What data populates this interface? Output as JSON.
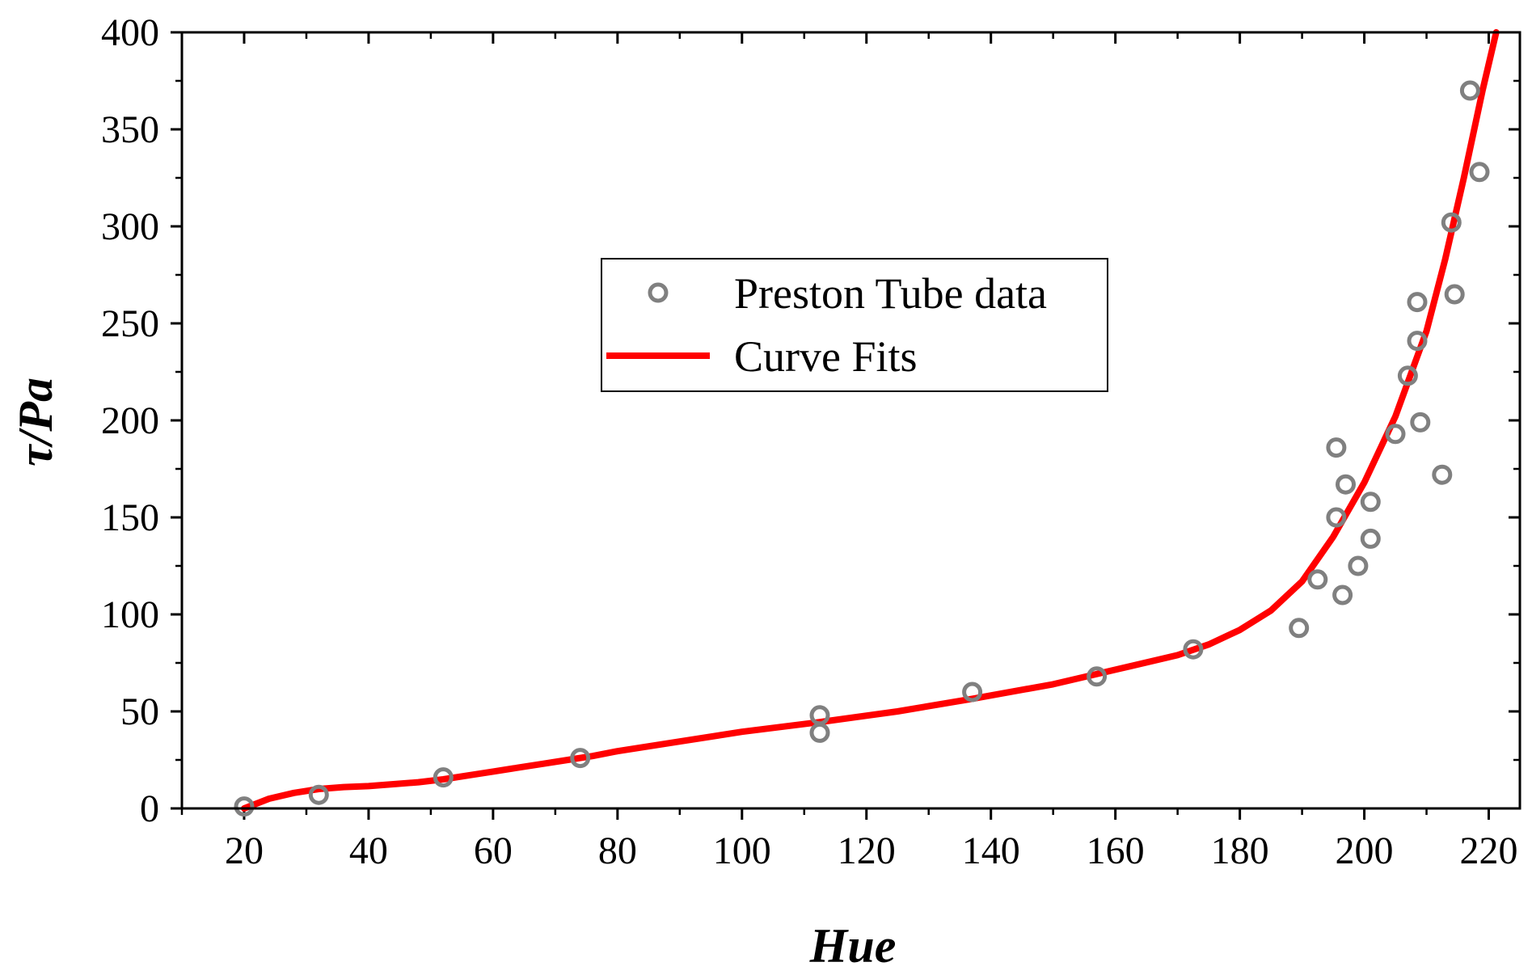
{
  "chart_data": {
    "type": "scatter",
    "xlabel": "Hue",
    "ylabel": "τ/Pa",
    "xlim": [
      10,
      225
    ],
    "ylim": [
      0,
      400
    ],
    "x_ticks": [
      20,
      40,
      60,
      80,
      100,
      120,
      140,
      160,
      180,
      200,
      220
    ],
    "y_ticks": [
      0,
      50,
      100,
      150,
      200,
      250,
      300,
      350,
      400
    ],
    "legend": {
      "placement": "center-left",
      "entries": [
        "Preston Tube data",
        "Curve Fits"
      ]
    },
    "series": [
      {
        "name": "Preston Tube data",
        "kind": "scatter",
        "color": "#808080",
        "points": [
          [
            20,
            1
          ],
          [
            32,
            7
          ],
          [
            52,
            16
          ],
          [
            74,
            26
          ],
          [
            112.5,
            48
          ],
          [
            112.5,
            39
          ],
          [
            137,
            60
          ],
          [
            157,
            68
          ],
          [
            172.5,
            82
          ],
          [
            189.5,
            93
          ],
          [
            192.5,
            118
          ],
          [
            195.5,
            186
          ],
          [
            195.5,
            150
          ],
          [
            196.5,
            110
          ],
          [
            197,
            167
          ],
          [
            199,
            125
          ],
          [
            201,
            158
          ],
          [
            201,
            139
          ],
          [
            205,
            193
          ],
          [
            207,
            223
          ],
          [
            208.5,
            241
          ],
          [
            208.5,
            261
          ],
          [
            209,
            199
          ],
          [
            212.5,
            172
          ],
          [
            214,
            302
          ],
          [
            214.5,
            265
          ],
          [
            217,
            370
          ],
          [
            218.5,
            328
          ]
        ]
      },
      {
        "name": "Curve Fits",
        "kind": "line",
        "color": "#ff0000",
        "points": [
          [
            20,
            0
          ],
          [
            24,
            5
          ],
          [
            28,
            8
          ],
          [
            32,
            10
          ],
          [
            36,
            11
          ],
          [
            40,
            11.5
          ],
          [
            44,
            12.5
          ],
          [
            48,
            13.5
          ],
          [
            52,
            15
          ],
          [
            56,
            17
          ],
          [
            60,
            19
          ],
          [
            64,
            21
          ],
          [
            68,
            23
          ],
          [
            72,
            25
          ],
          [
            76,
            27
          ],
          [
            80,
            29.5
          ],
          [
            90,
            34.5
          ],
          [
            100,
            39.5
          ],
          [
            112.5,
            44.5
          ],
          [
            125,
            50
          ],
          [
            137,
            56.5
          ],
          [
            150,
            64
          ],
          [
            160,
            71.5
          ],
          [
            170,
            79
          ],
          [
            175,
            84.5
          ],
          [
            180,
            92
          ],
          [
            185,
            102
          ],
          [
            190,
            117
          ],
          [
            195,
            140
          ],
          [
            200,
            168
          ],
          [
            205,
            202
          ],
          [
            210,
            246
          ],
          [
            213,
            283
          ],
          [
            216,
            325
          ],
          [
            219,
            370
          ],
          [
            221.2,
            400
          ]
        ]
      }
    ]
  }
}
